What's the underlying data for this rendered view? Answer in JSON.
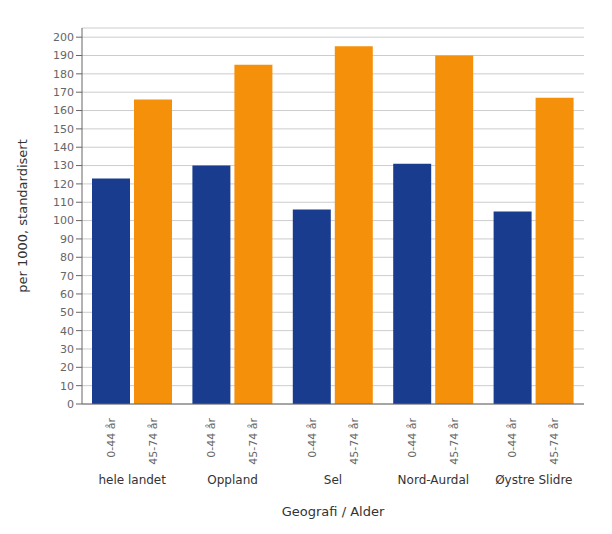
{
  "chart_data": {
    "type": "bar",
    "categories": [
      "hele landet",
      "Oppland",
      "Sel",
      "Nord-Aurdal",
      "Øystre Slidre"
    ],
    "series": [
      {
        "name": "0-44 år",
        "color": "#1a3c8f",
        "values": [
          123,
          130,
          106,
          131,
          105
        ]
      },
      {
        "name": "45-74 år",
        "color": "#f5900a",
        "values": [
          166,
          185,
          195,
          190,
          167
        ]
      }
    ],
    "ylabel": "per 1000, standardisert",
    "xlabel": "Geografi / Alder",
    "ylim": [
      0,
      205
    ],
    "yticks": [
      0,
      10,
      20,
      30,
      40,
      50,
      60,
      70,
      80,
      90,
      100,
      110,
      120,
      130,
      140,
      150,
      160,
      170,
      180,
      190,
      200
    ],
    "grid": true
  }
}
